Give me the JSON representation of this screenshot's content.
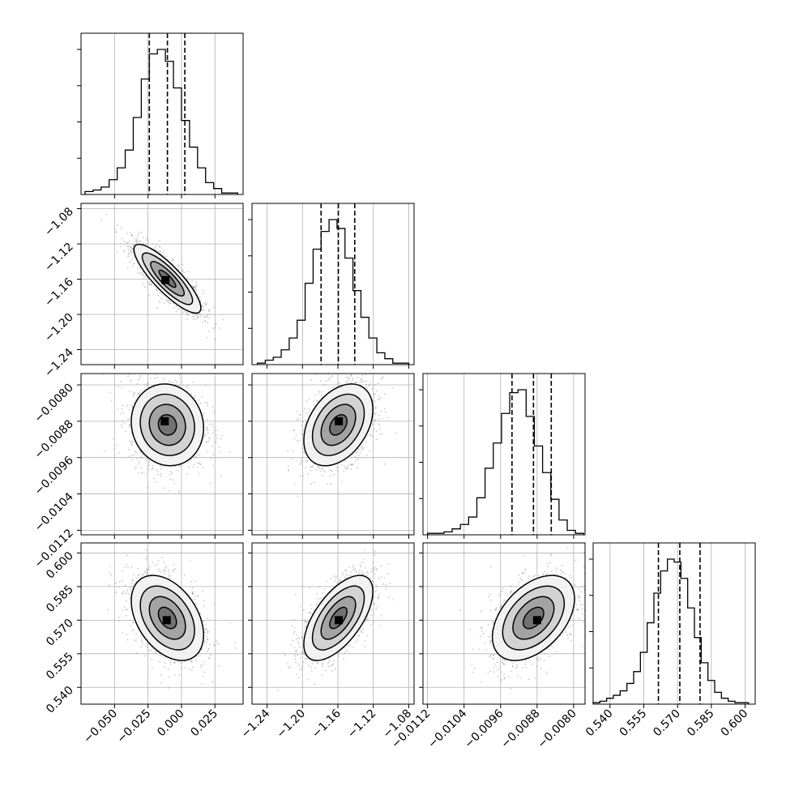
{
  "chart_data": {
    "type": "corner",
    "description_free": true,
    "grid": true,
    "dimensions": [
      {
        "ticks": [
          -0.05,
          -0.025,
          0.0,
          0.025
        ],
        "tick_labels": [
          "−0.050",
          "−0.025",
          "0.000",
          "0.025"
        ],
        "range": [
          -0.075,
          0.046
        ],
        "quantiles": [
          -0.024,
          -0.0105,
          0.0025
        ],
        "hist_bins": [
          -0.072,
          -0.066,
          -0.06,
          -0.054,
          -0.048,
          -0.042,
          -0.036,
          -0.03,
          -0.024,
          -0.018,
          -0.012,
          -0.006,
          0.0,
          0.006,
          0.012,
          0.018,
          0.024,
          0.03,
          0.036,
          0.042
        ],
        "hist_counts": [
          2,
          3,
          5,
          10,
          18,
          30,
          52,
          78,
          95,
          98,
          90,
          72,
          50,
          32,
          18,
          8,
          4,
          1,
          1
        ]
      },
      {
        "ticks": [
          -1.24,
          -1.2,
          -1.16,
          -1.12,
          -1.08
        ],
        "tick_labels": [
          "−1.24",
          "−1.20",
          "−1.16",
          "−1.12",
          "−1.08"
        ],
        "range": [
          -1.257,
          -1.074
        ],
        "quantiles": [
          -1.179,
          -1.1595,
          -1.141
        ],
        "hist_bins": [
          -1.251,
          -1.242,
          -1.233,
          -1.224,
          -1.215,
          -1.206,
          -1.197,
          -1.188,
          -1.179,
          -1.17,
          -1.161,
          -1.152,
          -1.143,
          -1.134,
          -1.125,
          -1.116,
          -1.107,
          -1.098,
          -1.089,
          -1.08
        ],
        "hist_counts": [
          1,
          3,
          5,
          10,
          18,
          30,
          55,
          78,
          90,
          98,
          92,
          72,
          50,
          32,
          18,
          8,
          4,
          1,
          1
        ]
      },
      {
        "ticks": [
          -0.0112,
          -0.0104,
          -0.0096,
          -0.0088,
          -0.008
        ],
        "tick_labels": [
          "−0.0112",
          "−0.0104",
          "−0.0096",
          "−0.0088",
          "−0.0080"
        ],
        "range": [
          -0.0113,
          -0.00775
        ],
        "quantiles": [
          -0.00935,
          -0.00888,
          -0.00849
        ],
        "hist_bins": [
          -0.0112,
          -0.01102,
          -0.01084,
          -0.01066,
          -0.01048,
          -0.0103,
          -0.01012,
          -0.00994,
          -0.00976,
          -0.00958,
          -0.0094,
          -0.00922,
          -0.00904,
          -0.00886,
          -0.00868,
          -0.0085,
          -0.00832,
          -0.00814,
          -0.00796,
          -0.00778
        ],
        "hist_counts": [
          1,
          1,
          2,
          4,
          7,
          12,
          25,
          45,
          62,
          82,
          96,
          98,
          80,
          60,
          42,
          24,
          10,
          3,
          1
        ]
      },
      {
        "ticks": [
          0.54,
          0.555,
          0.57,
          0.585,
          0.6
        ],
        "tick_labels": [
          "0.540",
          "0.555",
          "0.570",
          "0.585",
          "0.600"
        ],
        "range": [
          0.5325,
          0.6045
        ],
        "quantiles": [
          0.5615,
          0.571,
          0.58
        ],
        "hist_bins": [
          0.5325,
          0.5355,
          0.5385,
          0.5415,
          0.5445,
          0.5475,
          0.5505,
          0.5535,
          0.5565,
          0.5595,
          0.5625,
          0.5655,
          0.5685,
          0.5715,
          0.5745,
          0.5775,
          0.5805,
          0.5835,
          0.5865,
          0.5895,
          0.5925,
          0.5955,
          0.5985,
          0.6015
        ],
        "hist_counts": [
          1,
          2,
          4,
          6,
          9,
          14,
          22,
          35,
          55,
          75,
          90,
          98,
          96,
          85,
          65,
          45,
          28,
          16,
          8,
          4,
          2,
          1,
          1
        ]
      }
    ],
    "pairs": [
      {
        "row": 1,
        "col": 0,
        "mean": [
          -0.0105,
          -1.1595
        ],
        "sd": [
          0.0125,
          0.0195
        ],
        "rho": -0.85,
        "mode": [
          -0.012,
          -1.161
        ]
      },
      {
        "row": 2,
        "col": 0,
        "mean": [
          -0.0105,
          -0.00888
        ],
        "sd": [
          0.0135,
          0.00045
        ],
        "rho": -0.08,
        "mode": [
          -0.0125,
          -0.0088
        ]
      },
      {
        "row": 2,
        "col": 1,
        "mean": [
          -1.1595,
          -0.00888
        ],
        "sd": [
          0.0195,
          0.00045
        ],
        "rho": 0.38,
        "mode": [
          -1.159,
          -0.0088
        ]
      },
      {
        "row": 3,
        "col": 0,
        "mean": [
          -0.0105,
          0.571
        ],
        "sd": [
          0.0135,
          0.0095
        ],
        "rho": -0.4,
        "mode": [
          -0.011,
          0.57
        ]
      },
      {
        "row": 3,
        "col": 1,
        "mean": [
          -1.1595,
          0.571
        ],
        "sd": [
          0.0195,
          0.0095
        ],
        "rho": 0.62,
        "mode": [
          -1.159,
          0.57
        ]
      },
      {
        "row": 3,
        "col": 2,
        "mean": [
          -0.00888,
          0.571
        ],
        "sd": [
          0.00045,
          0.0095
        ],
        "rho": 0.45,
        "mode": [
          -0.0088,
          0.57
        ]
      }
    ]
  }
}
